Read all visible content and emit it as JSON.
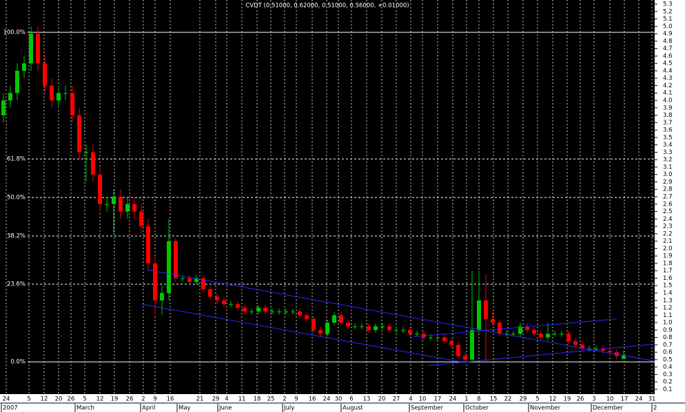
{
  "chart_data": {
    "type": "candlestick",
    "title": "CVDT (0.51000, 0.62000, 0.51000, 0.56000, +0.01000)",
    "open": [
      3.8,
      4.0,
      4.1,
      4.4,
      4.5,
      4.9,
      4.5,
      4.2,
      4.0,
      4.1,
      4.1,
      3.8,
      3.3,
      3.3,
      3.0,
      2.6,
      2.6,
      2.7,
      2.5,
      2.6,
      2.5,
      2.3,
      1.8,
      1.3,
      1.4,
      2.1,
      1.6,
      1.6,
      1.55,
      1.6,
      1.45,
      1.35,
      1.3,
      1.25,
      1.25,
      1.2,
      1.15,
      1.15,
      1.2,
      1.15,
      1.15,
      1.15,
      1.15,
      1.15,
      1.1,
      1.05,
      0.9,
      0.85,
      1.0,
      1.1,
      1.0,
      0.95,
      0.95,
      0.95,
      0.9,
      0.95,
      0.95,
      0.9,
      0.9,
      0.9,
      0.85,
      0.85,
      0.8,
      0.8,
      0.8,
      0.75,
      0.7,
      0.55,
      0.5,
      0.9,
      1.3,
      1.05,
      1.0,
      0.85,
      0.85,
      0.85,
      0.95,
      0.9,
      0.85,
      0.8,
      0.85,
      0.85,
      0.85,
      0.75,
      0.7,
      0.65,
      0.65,
      0.65,
      0.62,
      0.6,
      0.51
    ],
    "high": [
      4.1,
      4.2,
      4.5,
      4.6,
      5.0,
      5.0,
      4.6,
      4.3,
      4.2,
      4.2,
      4.2,
      3.9,
      3.4,
      3.4,
      3.1,
      2.7,
      2.8,
      2.8,
      2.7,
      2.7,
      2.6,
      2.4,
      1.9,
      1.5,
      2.4,
      2.14,
      1.64,
      1.64,
      1.64,
      1.64,
      1.49,
      1.39,
      1.34,
      1.29,
      1.29,
      1.24,
      1.19,
      1.24,
      1.24,
      1.19,
      1.19,
      1.19,
      1.19,
      1.19,
      1.14,
      1.09,
      0.94,
      1.04,
      1.14,
      1.14,
      1.04,
      0.99,
      0.99,
      0.99,
      0.99,
      0.99,
      0.99,
      0.94,
      0.94,
      0.94,
      0.89,
      0.89,
      0.84,
      0.84,
      0.84,
      0.79,
      0.74,
      0.59,
      1.7,
      1.7,
      1.65,
      1.15,
      1.04,
      0.89,
      0.89,
      1.0,
      0.99,
      0.94,
      0.89,
      1.0,
      0.89,
      0.89,
      0.89,
      0.79,
      0.74,
      0.69,
      0.69,
      0.69,
      0.66,
      0.64,
      0.62
    ],
    "low": [
      3.7,
      3.9,
      4.0,
      4.3,
      4.4,
      4.4,
      4.1,
      3.9,
      3.9,
      4.0,
      3.7,
      3.2,
      2.9,
      2.9,
      2.5,
      2.5,
      2.2,
      2.4,
      2.4,
      2.4,
      2.2,
      1.7,
      1.1,
      1.1,
      1.3,
      1.56,
      1.56,
      1.51,
      1.51,
      1.41,
      1.31,
      1.26,
      1.21,
      1.21,
      1.16,
      1.11,
      1.11,
      1.11,
      1.11,
      1.11,
      1.11,
      1.11,
      1.11,
      1.06,
      1.01,
      0.86,
      0.81,
      0.81,
      0.96,
      0.96,
      0.91,
      0.91,
      0.91,
      0.86,
      0.86,
      0.91,
      0.86,
      0.86,
      0.86,
      0.81,
      0.81,
      0.76,
      0.76,
      0.76,
      0.71,
      0.66,
      0.51,
      0.46,
      0.46,
      0.86,
      0.45,
      0.96,
      0.81,
      0.81,
      0.81,
      0.81,
      0.86,
      0.81,
      0.76,
      0.76,
      0.81,
      0.81,
      0.71,
      0.66,
      0.61,
      0.61,
      0.61,
      0.58,
      0.56,
      0.51,
      0.51
    ],
    "close": [
      4.0,
      4.1,
      4.4,
      4.5,
      4.9,
      4.5,
      4.2,
      4.0,
      4.1,
      4.1,
      3.8,
      3.3,
      3.3,
      3.0,
      2.6,
      2.6,
      2.7,
      2.5,
      2.6,
      2.5,
      2.3,
      1.8,
      1.3,
      1.4,
      2.1,
      1.6,
      1.6,
      1.55,
      1.6,
      1.45,
      1.35,
      1.3,
      1.25,
      1.25,
      1.2,
      1.15,
      1.15,
      1.2,
      1.15,
      1.15,
      1.15,
      1.15,
      1.15,
      1.1,
      1.05,
      0.9,
      0.85,
      1.0,
      1.1,
      1.0,
      0.95,
      0.95,
      0.95,
      0.9,
      0.95,
      0.95,
      0.9,
      0.9,
      0.9,
      0.85,
      0.85,
      0.8,
      0.8,
      0.8,
      0.75,
      0.7,
      0.55,
      0.5,
      0.9,
      1.3,
      1.05,
      1.0,
      0.85,
      0.85,
      0.85,
      0.95,
      0.9,
      0.85,
      0.8,
      0.85,
      0.85,
      0.85,
      0.75,
      0.7,
      0.65,
      0.65,
      0.65,
      0.62,
      0.6,
      0.55,
      0.56
    ],
    "up_color": "#00c800",
    "down_color": "#ff0000",
    "xlim": [
      0,
      95
    ],
    "ylim": [
      0.044,
      5.356
    ],
    "yticks": [
      0.1,
      0.2,
      0.3,
      0.4,
      0.5,
      0.6,
      0.7,
      0.8,
      0.9,
      {
        "value": 1,
        "label": "1.0"
      },
      1.1,
      1.2,
      1.3,
      1.4,
      1.5,
      1.6,
      1.7,
      1.8,
      1.9,
      {
        "value": 2,
        "label": "2.0"
      },
      2.1,
      2.2,
      2.3,
      2.4,
      2.5,
      2.6,
      2.7,
      2.8,
      2.9,
      {
        "value": 3,
        "label": "3.0"
      },
      3.1,
      3.2,
      3.3,
      3.4,
      3.5,
      3.6,
      3.7,
      3.8,
      3.9,
      {
        "value": 4,
        "label": "4.0"
      },
      4.1,
      4.2,
      4.3,
      4.4,
      4.5,
      4.6,
      4.7,
      4.8,
      4.9,
      {
        "value": 5,
        "label": "5.0"
      },
      5.1,
      5.2,
      5.3
    ],
    "xticks": [
      {
        "value": 0.9,
        "label": "24"
      },
      {
        "value": 4.2,
        "label": "5"
      },
      {
        "value": 6.4,
        "label": "12"
      },
      {
        "value": 8.5,
        "label": "20"
      },
      {
        "value": 10.3,
        "label": "26"
      },
      {
        "value": 12.3,
        "label": "5"
      },
      {
        "value": 14.5,
        "label": "12"
      },
      {
        "value": 16.6,
        "label": "19"
      },
      {
        "value": 18.8,
        "label": "26"
      },
      {
        "value": 20.8,
        "label": "2"
      },
      {
        "value": 22.5,
        "label": "9"
      },
      {
        "value": 24.7,
        "label": "16"
      },
      {
        "value": 29.0,
        "label": "21"
      },
      {
        "value": 31.3,
        "label": "29"
      },
      {
        "value": 32.9,
        "label": "4"
      },
      {
        "value": 35.1,
        "label": "11"
      },
      {
        "value": 37.3,
        "label": "18"
      },
      {
        "value": 39.3,
        "label": "25"
      },
      {
        "value": 41.3,
        "label": "2"
      },
      {
        "value": 43.0,
        "label": "9"
      },
      {
        "value": 45.3,
        "label": "16"
      },
      {
        "value": 47.4,
        "label": "24"
      },
      {
        "value": 49.1,
        "label": "30"
      },
      {
        "value": 51.0,
        "label": "6"
      },
      {
        "value": 53.2,
        "label": "13"
      },
      {
        "value": 55.4,
        "label": "20"
      },
      {
        "value": 57.5,
        "label": "27"
      },
      {
        "value": 59.6,
        "label": "4"
      },
      {
        "value": 61.3,
        "label": "10"
      },
      {
        "value": 63.5,
        "label": "17"
      },
      {
        "value": 65.7,
        "label": "24"
      },
      {
        "value": 67.7,
        "label": "1"
      },
      {
        "value": 69.5,
        "label": "8"
      },
      {
        "value": 71.6,
        "label": "15"
      },
      {
        "value": 73.7,
        "label": "22"
      },
      {
        "value": 75.9,
        "label": "29"
      },
      {
        "value": 78.0,
        "label": "5"
      },
      {
        "value": 80.2,
        "label": "12"
      },
      {
        "value": 82.3,
        "label": "19"
      },
      {
        "value": 84.2,
        "label": "26"
      },
      {
        "value": 86.2,
        "label": "3"
      },
      {
        "value": 88.5,
        "label": "10"
      },
      {
        "value": 90.6,
        "label": "17"
      },
      {
        "value": 92.7,
        "label": "24"
      },
      {
        "value": 94.6,
        "label": "31"
      }
    ],
    "month_ticks": [
      {
        "value": 0.2,
        "label": "2007"
      },
      {
        "value": 10.9,
        "label": "March"
      },
      {
        "value": 20.4,
        "label": "April"
      },
      {
        "value": 25.7,
        "label": "May"
      },
      {
        "value": 31.6,
        "label": "June"
      },
      {
        "value": 41.0,
        "label": "July"
      },
      {
        "value": 49.5,
        "label": "August"
      },
      {
        "value": 59.4,
        "label": "September"
      },
      {
        "value": 67.3,
        "label": "October"
      },
      {
        "value": 76.7,
        "label": "November"
      },
      {
        "value": 85.8,
        "label": "December"
      },
      {
        "value": 94.6,
        "label": "2"
      }
    ],
    "fib_levels": [
      {
        "value": 4.92,
        "label": "100.0%",
        "style": "solid"
      },
      {
        "value": 3.21,
        "label": "61.8%",
        "style": "dashed"
      },
      {
        "value": 2.69,
        "label": "50.0%",
        "style": "dashed"
      },
      {
        "value": 2.17,
        "label": "38.2%",
        "style": "dashed"
      },
      {
        "value": 1.52,
        "label": "23.6%",
        "style": "dashed"
      },
      {
        "value": 0.47,
        "label": "0.0%",
        "style": "solid"
      }
    ],
    "trendline_color": "#2a2aff",
    "trendlines": [
      {
        "x": [
          21.5,
          95
        ],
        "y": [
          1.71,
          0.48
        ]
      },
      {
        "x": [
          20.5,
          67.5
        ],
        "y": [
          1.25,
          0.46
        ]
      },
      {
        "x": [
          62,
          95
        ],
        "y": [
          0.42,
          0.71
        ]
      },
      {
        "x": [
          60,
          89.5
        ],
        "y": [
          0.81,
          1.05
        ]
      }
    ]
  }
}
